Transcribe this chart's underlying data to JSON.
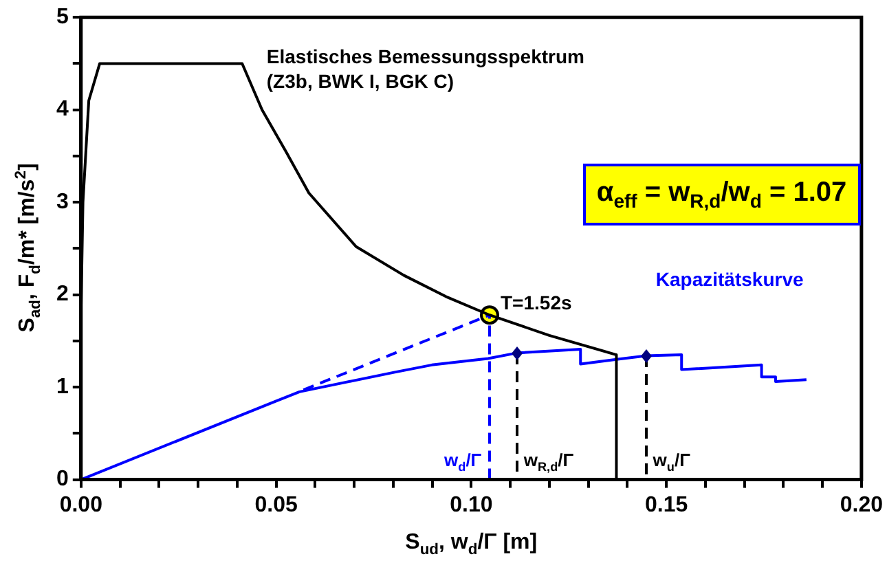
{
  "chart_data": {
    "type": "line",
    "xlabel": "S$_{ud}$, w$_{d}$/Γ [m]",
    "ylabel": "S$_{ad}$, F$_{d}$/m* [m/s$^{2}$]",
    "xlim": [
      0,
      0.2
    ],
    "xticks": [
      {
        "value": 0,
        "label": "0.00"
      },
      {
        "value": 0.01,
        "label": null
      },
      {
        "value": 0.02,
        "label": null
      },
      {
        "value": 0.03,
        "label": null
      },
      {
        "value": 0.04,
        "label": null
      },
      {
        "value": 0.05,
        "label": "0.05"
      },
      {
        "value": 0.06,
        "label": null
      },
      {
        "value": 0.07,
        "label": null
      },
      {
        "value": 0.08,
        "label": null
      },
      {
        "value": 0.09,
        "label": null
      },
      {
        "value": 0.1,
        "label": "0.10"
      },
      {
        "value": 0.11,
        "label": null
      },
      {
        "value": 0.12,
        "label": null
      },
      {
        "value": 0.13,
        "label": null
      },
      {
        "value": 0.14,
        "label": null
      },
      {
        "value": 0.15,
        "label": "0.15"
      },
      {
        "value": 0.16,
        "label": null
      },
      {
        "value": 0.17,
        "label": null
      },
      {
        "value": 0.18,
        "label": null
      },
      {
        "value": 0.19,
        "label": null
      },
      {
        "value": 0.2,
        "label": "0.20"
      }
    ],
    "ylim": [
      0,
      5
    ],
    "yticks": [
      0,
      {
        "value": 0.5,
        "label": null
      },
      1,
      {
        "value": 1.5,
        "label": null
      },
      2,
      {
        "value": 2.5,
        "label": null
      },
      3,
      {
        "value": 3.5,
        "label": null
      },
      4,
      {
        "value": 4.5,
        "label": null
      },
      5
    ],
    "grid": false,
    "legend": false,
    "series": [
      {
        "name": "Elastisches Bemessungsspektrum",
        "color": "#000000",
        "line_style": "solid",
        "marker": "none",
        "x": [
          0,
          0.0005,
          0.002,
          0.0048,
          0.0413,
          0.0464,
          0.0525,
          0.0584,
          0.0705,
          0.0827,
          0.0935,
          0.1047,
          0.12,
          0.1372,
          0.1372
        ],
        "values": [
          1.8,
          3.0,
          4.1,
          4.5,
          4.5,
          4.0,
          3.55,
          3.1,
          2.52,
          2.21,
          1.98,
          1.78,
          1.56,
          1.35,
          0
        ]
      },
      {
        "name": "Kapazitätskurve",
        "color": "#0000ff",
        "line_style": "solid",
        "marker": "none",
        "x": [
          0,
          0.05,
          0.056,
          0.0802,
          0.0899,
          0.1043,
          0.1117,
          0.128,
          0.128,
          0.1372,
          0.1448,
          0.1539,
          0.1539,
          0.1744,
          0.1744,
          0.178,
          0.178,
          0.1859
        ],
        "values": [
          0,
          0.85,
          0.95,
          1.16,
          1.24,
          1.31,
          1.37,
          1.41,
          1.25,
          1.3,
          1.34,
          1.35,
          1.19,
          1.24,
          1.11,
          1.11,
          1.06,
          1.08
        ]
      },
      {
        "color": "#0000ff",
        "line_style": "dashed",
        "marker": "none",
        "x": [
          0.057,
          0.1047
        ],
        "values": [
          0.97,
          1.78
        ]
      },
      {
        "color": "#0000ff",
        "line_style": "dashed",
        "marker": "none",
        "x": [
          0.1047,
          0.1047
        ],
        "values": [
          0,
          1.78
        ]
      },
      {
        "type": "scatter",
        "color": "#ffff00",
        "marker": "circle",
        "x": [
          0.1047
        ],
        "values": [
          1.78
        ]
      }
    ],
    "annotations": [
      "(Z3b, BWK I, BGK C)",
      "α$_{eff}$ = w$_{R,d}$/w$_{d}$ = 1.07",
      {
        "text": "T=1.52s",
        "x": 0.1047,
        "y": 1.78
      },
      {
        "text": "w$_{d}$/Γ",
        "x": 0.1047,
        "y": 0
      },
      {
        "text": "w$_{R,d}$/Γ",
        "x": 0.1117,
        "y": 1.37
      },
      {
        "text": "w$_{u}$/Γ",
        "x": 0.1448,
        "y": 1.34
      }
    ]
  }
}
